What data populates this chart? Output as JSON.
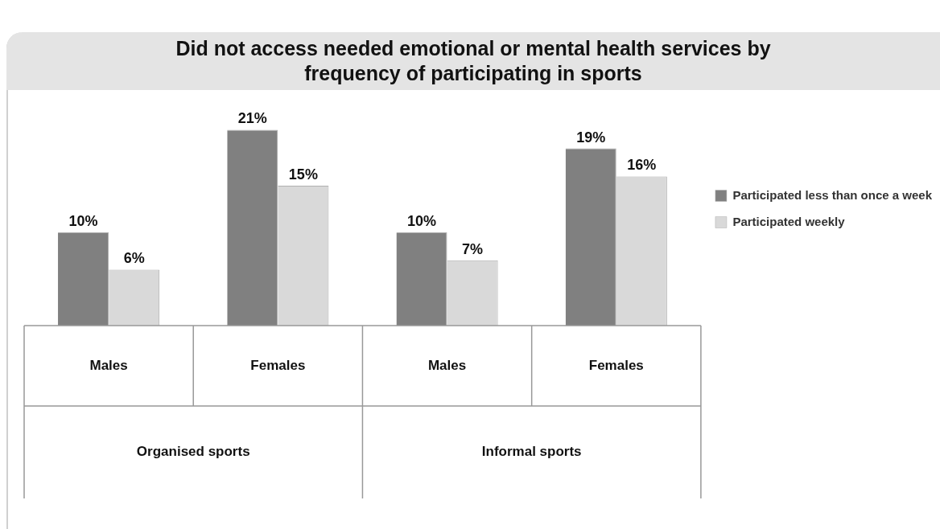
{
  "chart_data": {
    "type": "bar",
    "title": "Did not access needed emotional or mental health services by frequency of participating in sports",
    "categories": [
      "Males",
      "Females",
      "Males",
      "Females"
    ],
    "series": [
      {
        "name": "Participated less than once a week",
        "color": "#808080",
        "values": [
          10,
          21,
          10,
          19
        ],
        "value_labels": [
          "10%",
          "21%",
          "10%",
          "19%"
        ]
      },
      {
        "name": "Participated weekly",
        "color": "#d9d9d9",
        "values": [
          6,
          15,
          7,
          16
        ],
        "value_labels": [
          "6%",
          "15%",
          "7%",
          "16%"
        ]
      }
    ],
    "annotations": [
      "Organised sports",
      "Informal sports"
    ],
    "legend": "right"
  }
}
